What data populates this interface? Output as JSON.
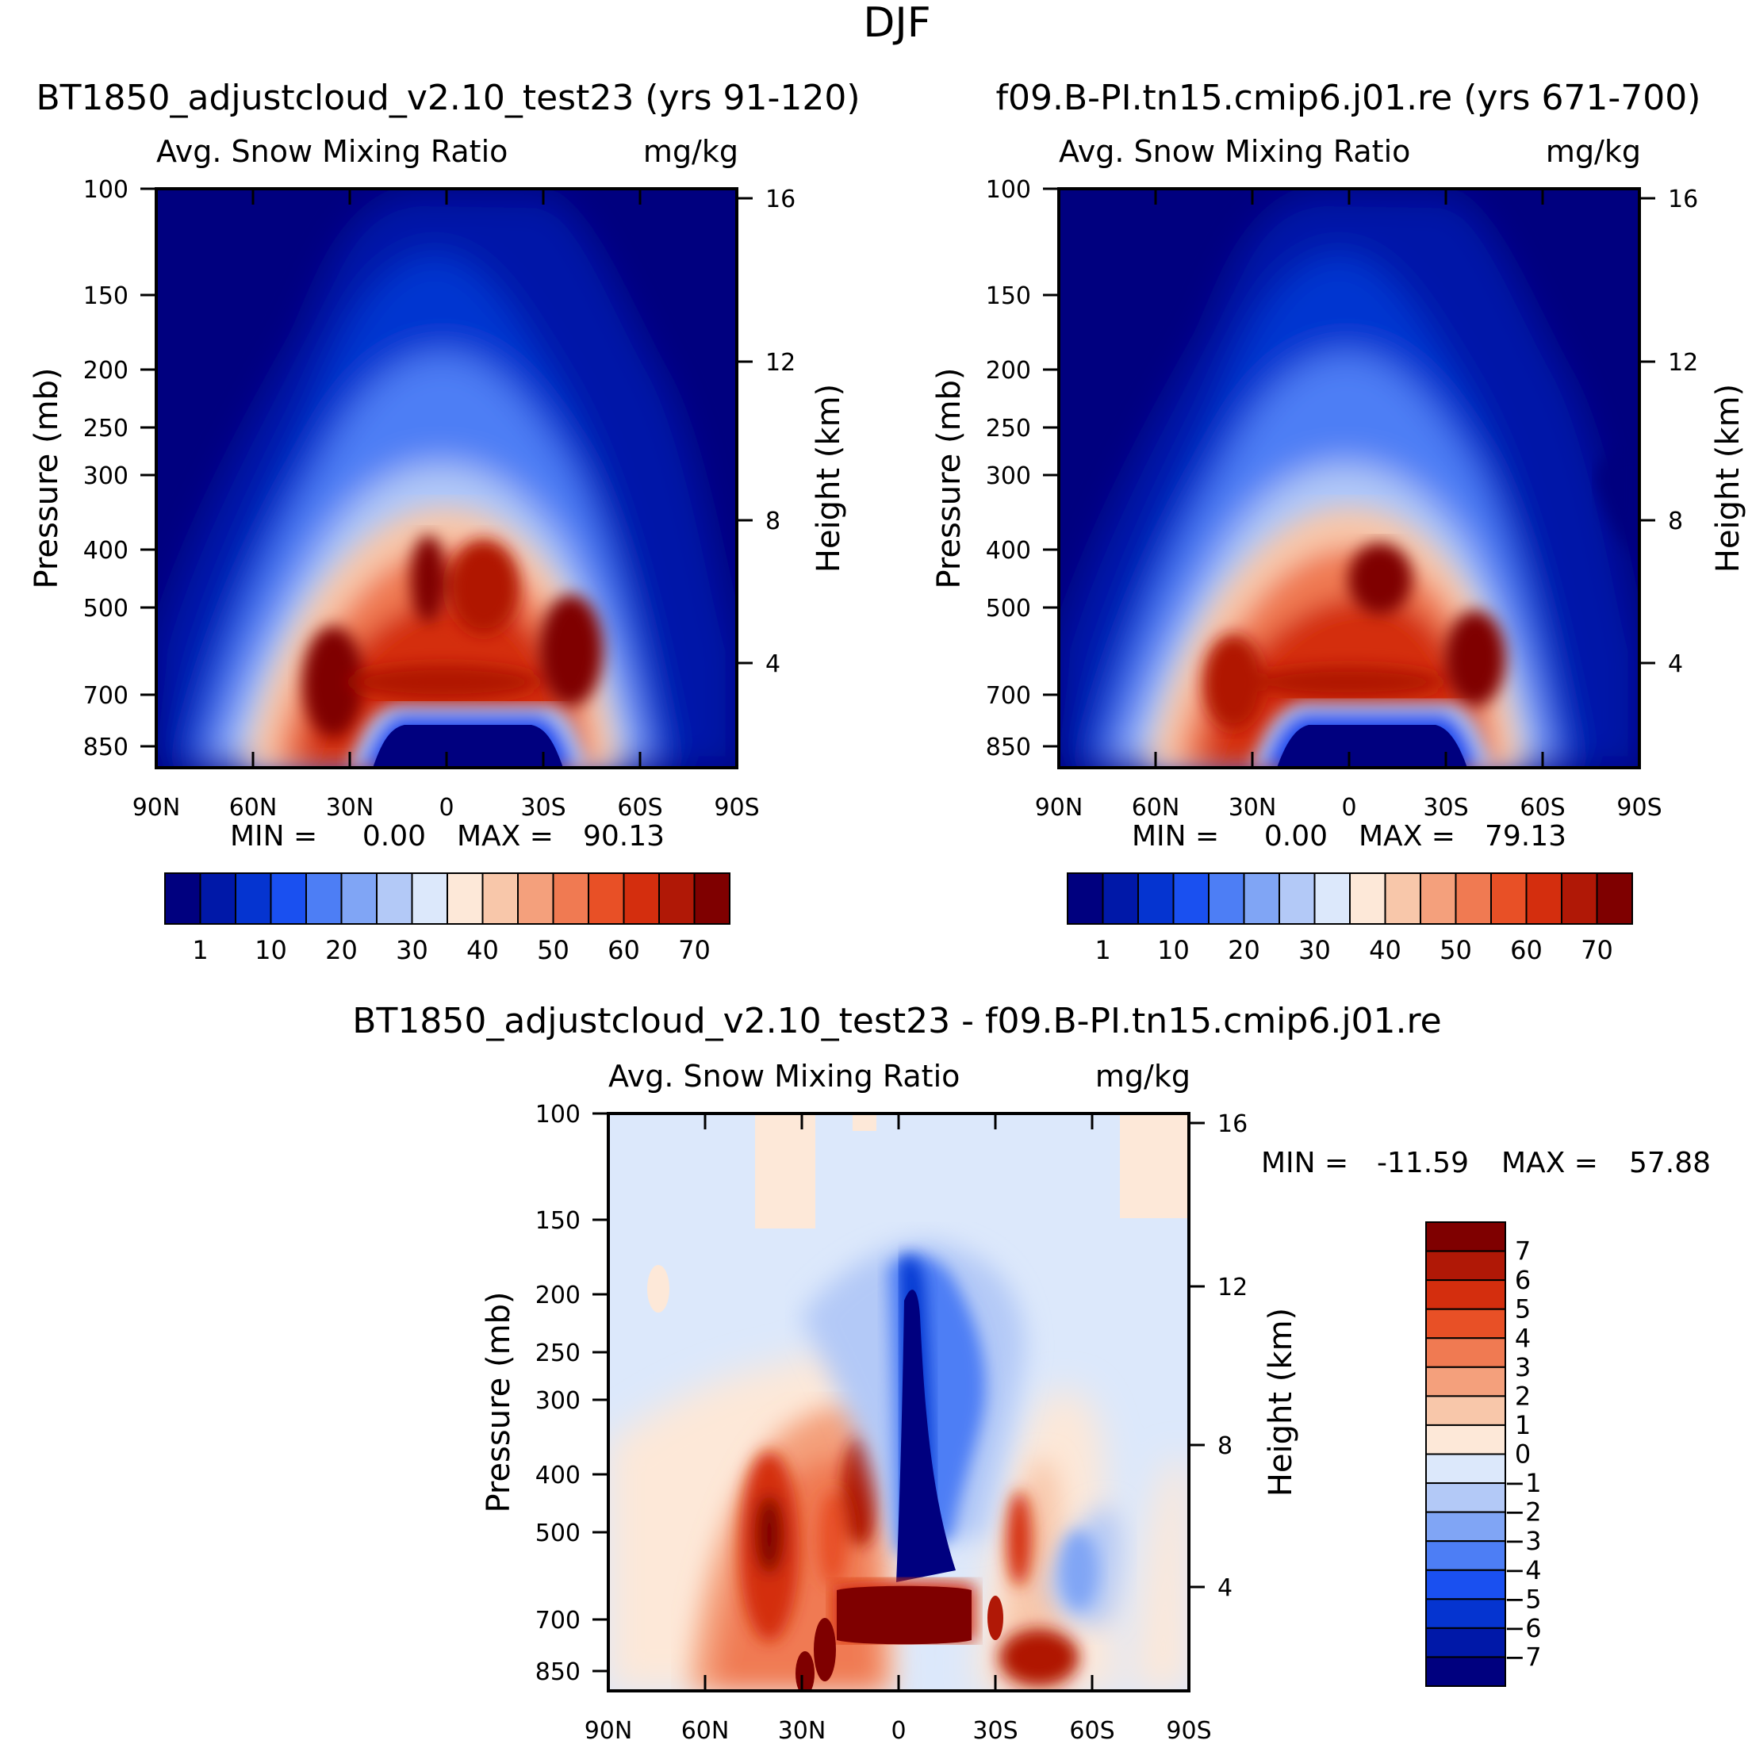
{
  "figure": {
    "title": "DJF",
    "variable": "Avg. Snow Mixing Ratio",
    "units": "mg/kg",
    "x_ticks": [
      "90N",
      "60N",
      "30N",
      "0",
      "30S",
      "60S",
      "90S"
    ],
    "pressure_ticks": [
      "100",
      "150",
      "200",
      "250",
      "300",
      "400",
      "500",
      "700",
      "850"
    ],
    "height_ticks": [
      "16",
      "12",
      "8",
      "4"
    ],
    "ylabel_left": "Pressure (mb)",
    "ylabel_right": "Height (km)",
    "min_label": "MIN =",
    "max_label": "MAX ="
  },
  "chart_data": [
    {
      "type": "heatmap",
      "title": "BT1850_adjustcloud_v2.10_test23 (yrs 91-120)",
      "min": "0.00",
      "max": "90.13",
      "colorbar_labels": [
        "1",
        "10",
        "20",
        "30",
        "40",
        "50",
        "60",
        "70"
      ],
      "levels": [
        0,
        1,
        5,
        10,
        15,
        20,
        25,
        30,
        35,
        40,
        45,
        50,
        55,
        60,
        65,
        70
      ]
    },
    {
      "type": "heatmap",
      "title": "f09.B-PI.tn15.cmip6.j01.re (yrs 671-700)",
      "min": "0.00",
      "max": "79.13",
      "colorbar_labels": [
        "1",
        "10",
        "20",
        "30",
        "40",
        "50",
        "60",
        "70"
      ],
      "levels": [
        0,
        1,
        5,
        10,
        15,
        20,
        25,
        30,
        35,
        40,
        45,
        50,
        55,
        60,
        65,
        70
      ]
    },
    {
      "type": "heatmap",
      "title": "BT1850_adjustcloud_v2.10_test23 - f09.B-PI.tn15.cmip6.j01.re",
      "min": "-11.59",
      "max": "57.88",
      "colorbar_labels": [
        "7",
        "6",
        "5",
        "4",
        "3",
        "2",
        "1",
        "0",
        "-1",
        "-2",
        "-3",
        "-4",
        "-5",
        "-6",
        "-7"
      ],
      "levels": [
        -7,
        -6,
        -5,
        -4,
        -3,
        -2,
        -1,
        0,
        1,
        2,
        3,
        4,
        5,
        6,
        7
      ]
    }
  ],
  "palette": [
    "#00007f",
    "#0018a8",
    "#0534d0",
    "#1a50f0",
    "#4d7ef5",
    "#80a5f5",
    "#b3c9f7",
    "#dce8fb",
    "#fde8d8",
    "#f8c7aa",
    "#f4a07c",
    "#f07a52",
    "#e85026",
    "#d42e0e",
    "#b01806",
    "#7f0000"
  ]
}
